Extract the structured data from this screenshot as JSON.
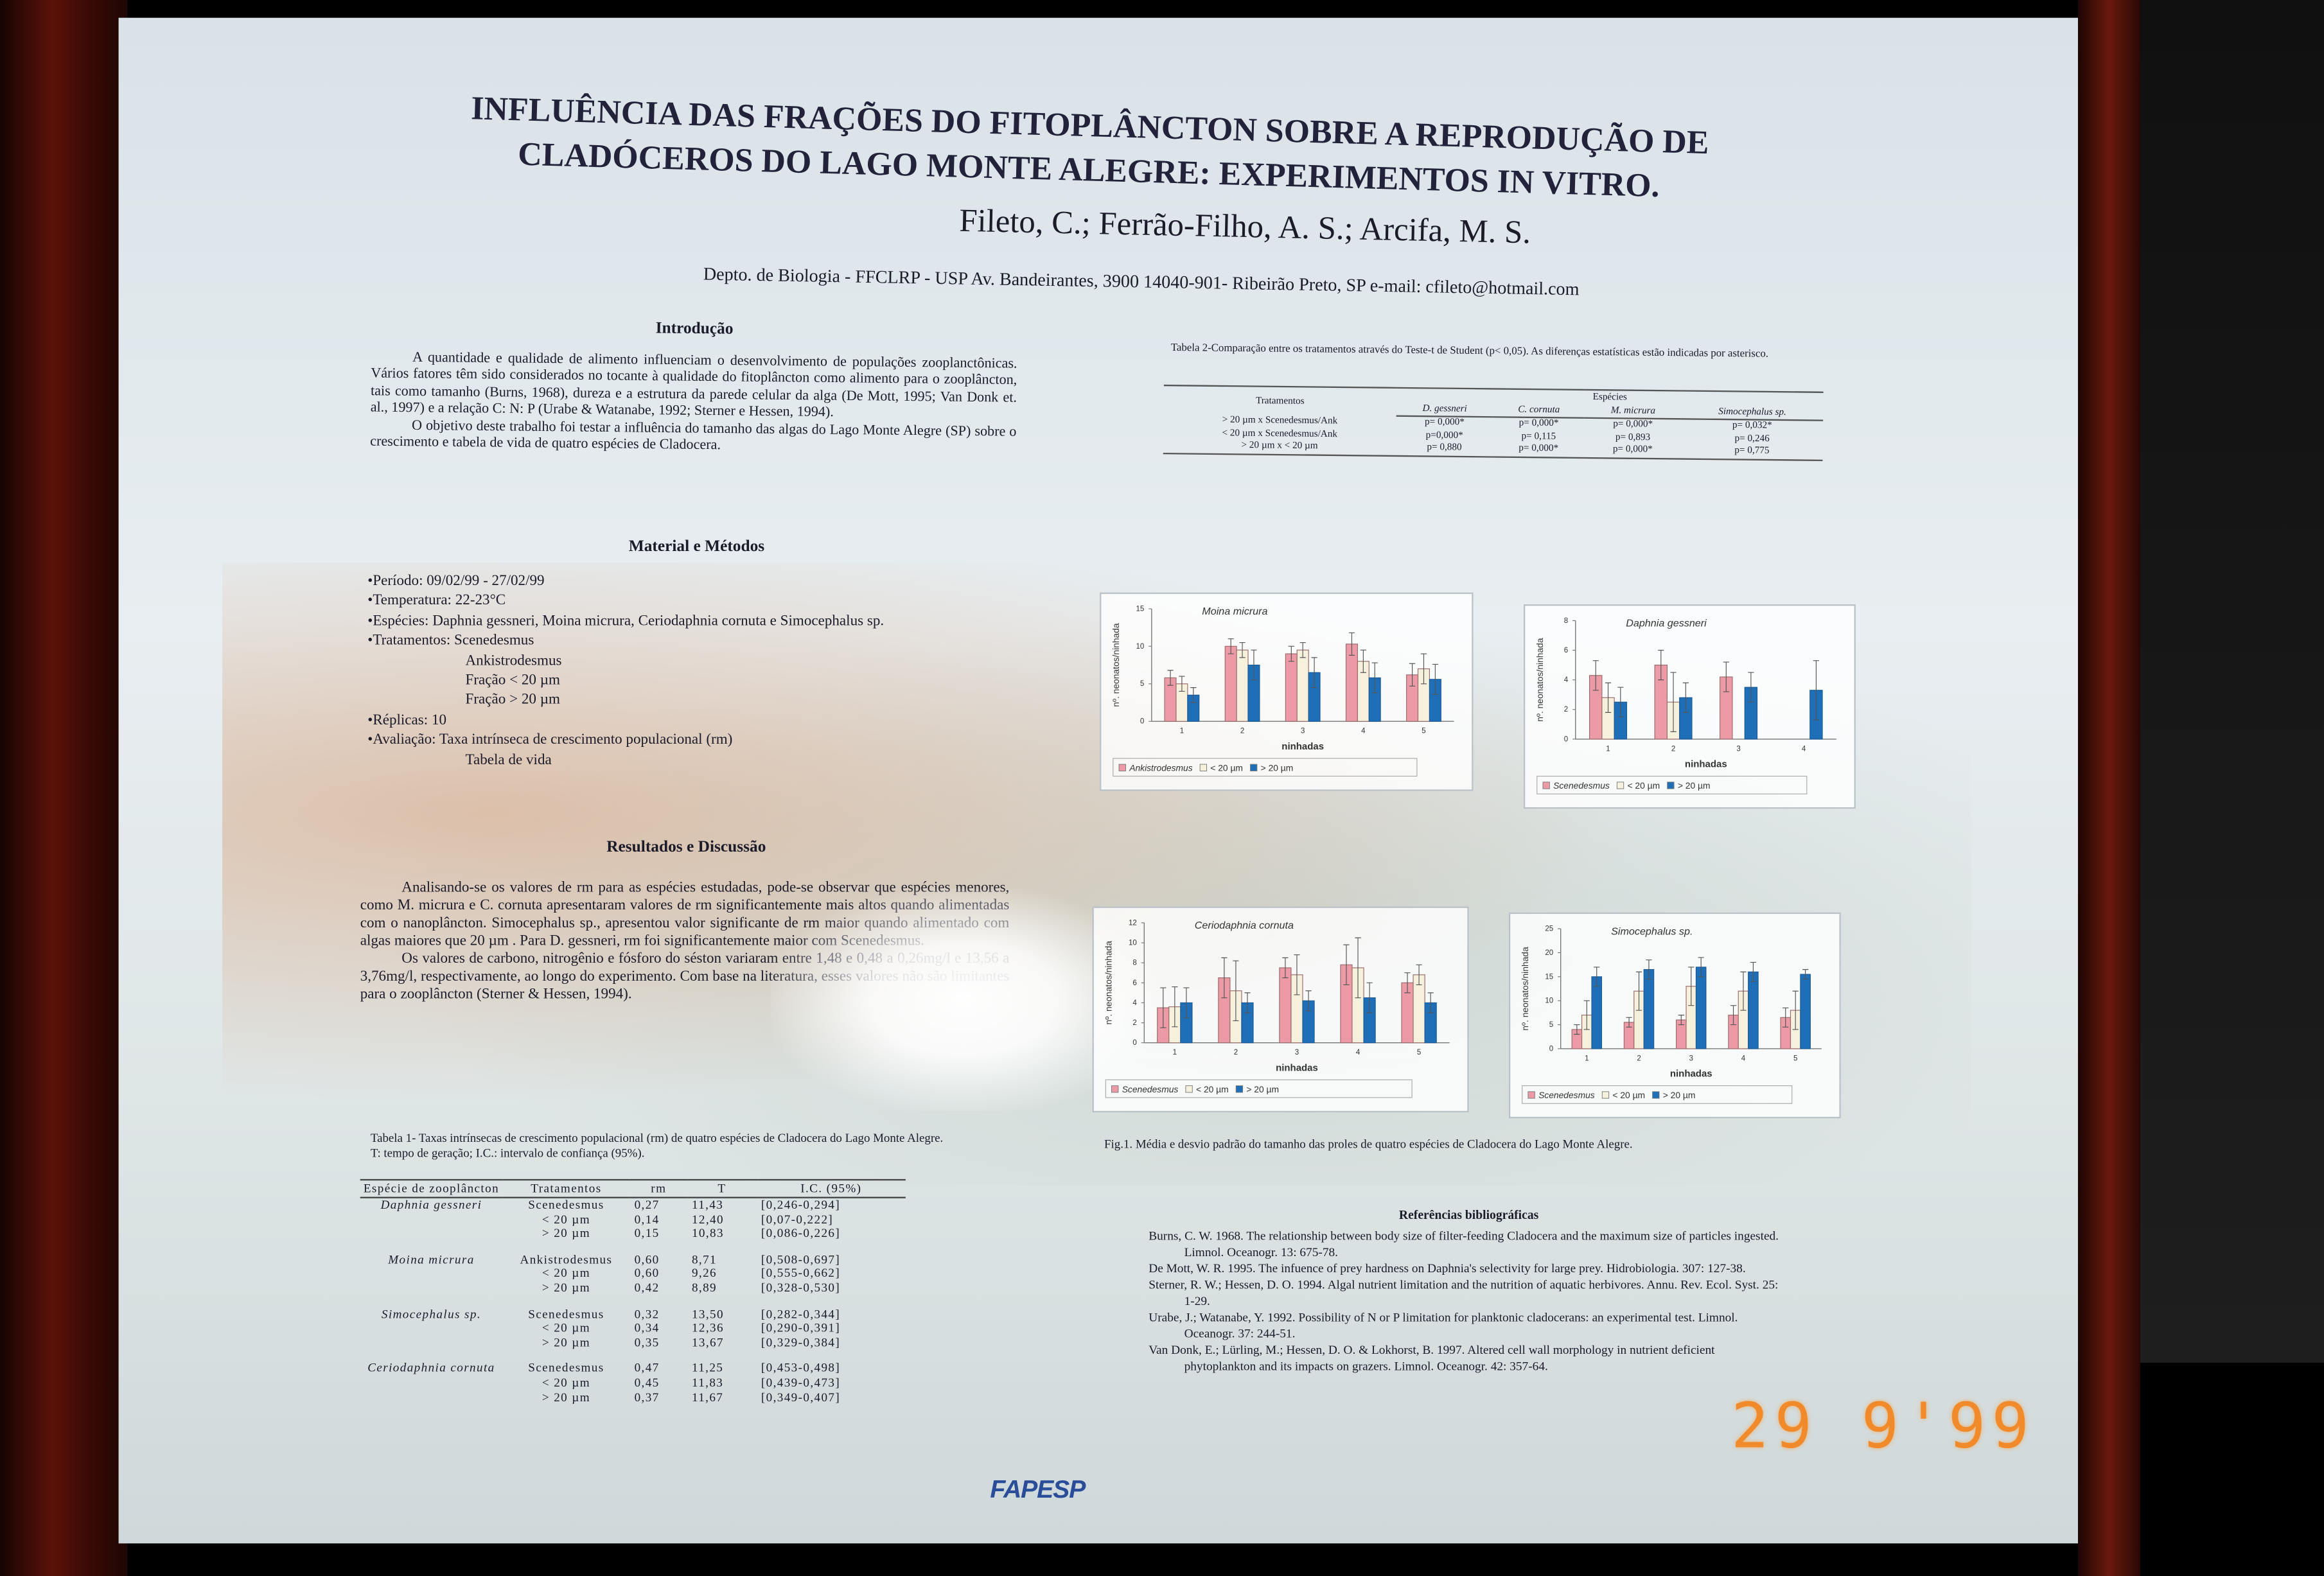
{
  "header": {
    "title": "INFLUÊNCIA DAS FRAÇÕES DO FITOPLÂNCTON SOBRE A REPRODUÇÃO DE CLADÓCEROS DO LAGO MONTE ALEGRE: EXPERIMENTOS IN VITRO.",
    "authors": "Fileto, C.; Ferrão-Filho, A. S.; Arcifa, M. S.",
    "affiliation": "Depto. de Biologia - FFCLRP - USP  Av. Bandeirantes, 3900  14040-901- Ribeirão Preto, SP e-mail: cfileto@hotmail.com"
  },
  "introduction": {
    "heading": "Introdução",
    "paragraphs": [
      "A quantidade e qualidade de alimento influenciam o desenvolvimento de populações zooplanctônicas. Vários fatores têm sido considerados no tocante à qualidade do fitoplâncton como alimento para o zooplâncton, tais como tamanho (Burns, 1968), dureza e a estrutura da parede celular da alga (De Mott, 1995; Van Donk et. al., 1997)  e a relação C: N: P (Urabe & Watanabe, 1992; Sterner e Hessen, 1994).",
      "O objetivo deste trabalho foi testar a influência do tamanho das algas do Lago Monte Alegre (SP) sobre o crescimento e tabela de vida de quatro espécies de Cladocera."
    ]
  },
  "methods": {
    "heading": "Material e Métodos",
    "items": [
      {
        "text": "•Período: 09/02/99 - 27/02/99"
      },
      {
        "text": "•Temperatura: 22-23°C"
      },
      {
        "text": "•Espécies: Daphnia gessneri, Moina micrura, Ceriodaphnia cornuta e  Simocephalus sp."
      },
      {
        "text": "•Tratamentos: Scenedesmus",
        "sub": [
          "Ankistrodesmus",
          "Fração < 20 µm",
          "Fração > 20 µm"
        ]
      },
      {
        "text": "•Réplicas: 10"
      },
      {
        "text": "•Avaliação: Taxa intrínseca de crescimento populacional (rm)",
        "sub": [
          "Tabela de vida"
        ]
      }
    ]
  },
  "results": {
    "heading": "Resultados e Discussão",
    "paragraphs": [
      "Analisando-se os valores de rm para as espécies estudadas, pode-se observar que espécies menores, como M. micrura e C. cornuta apresentaram valores de rm significantemente mais altos quando alimentadas com o nanoplâncton. Simocephalus sp., apresentou valor significante de rm maior quando alimentado com algas maiores que 20 µm . Para D. gessneri, rm  foi significantemente maior com Scenedesmus.",
      "Os valores de carbono, nitrogênio e fósforo do séston variaram entre 1,48 e 0,48 a 0,26mg/l e 13,56 a 3,76mg/l, respectivamente, ao longo do experimento. Com base na literatura, esses valores não são limitantes para o zooplâncton (Sterner & Hessen, 1994)."
    ]
  },
  "table1": {
    "caption": "Tabela 1- Taxas intrínsecas de crescimento populacional (rm) de quatro espécies de Cladocera do Lago Monte Alegre. T: tempo de geração; I.C.: intervalo de confiança (95%).",
    "columns": [
      "Espécie de zooplâncton",
      "Tratamentos",
      "rm",
      "T",
      "I.C. (95%)"
    ],
    "groups": [
      {
        "species": "Daphnia gessneri",
        "rows": [
          [
            "Scenedesmus",
            "0,27",
            "11,43",
            "[0,246-0,294]"
          ],
          [
            "< 20 µm",
            "0,14",
            "12,40",
            "[0,07-0,222]"
          ],
          [
            "> 20 µm",
            "0,15",
            "10,83",
            "[0,086-0,226]"
          ]
        ]
      },
      {
        "species": "Moina micrura",
        "rows": [
          [
            "Ankistrodesmus",
            "0,60",
            "8,71",
            "[0,508-0,697]"
          ],
          [
            "< 20 µm",
            "0,60",
            "9,26",
            "[0,555-0,662]"
          ],
          [
            "> 20 µm",
            "0,42",
            "8,89",
            "[0,328-0,530]"
          ]
        ]
      },
      {
        "species": "Simocephalus sp.",
        "rows": [
          [
            "Scenedesmus",
            "0,32",
            "13,50",
            "[0,282-0,344]"
          ],
          [
            "< 20 µm",
            "0,34",
            "12,36",
            "[0,290-0,391]"
          ],
          [
            "> 20 µm",
            "0,35",
            "13,67",
            "[0,329-0,384]"
          ]
        ]
      },
      {
        "species": "Ceriodaphnia cornuta",
        "rows": [
          [
            "Scenedesmus",
            "0,47",
            "11,25",
            "[0,453-0,498]"
          ],
          [
            "< 20 µm",
            "0,45",
            "11,83",
            "[0,439-0,473]"
          ],
          [
            "> 20 µm",
            "0,37",
            "11,67",
            "[0,349-0,407]"
          ]
        ]
      }
    ]
  },
  "table2": {
    "caption": "Tabela 2-Comparação entre os tratamentos através do Teste-t de Student (p< 0,05). As diferenças estatísticas estão indicadas por asterisco.",
    "treatments_header": "Tratamentos",
    "species_header": "Espécies",
    "species": [
      "D. gessneri",
      "C. cornuta",
      "M. micrura",
      "Simocephalus sp."
    ],
    "rows": [
      {
        "treatment": "> 20 µm x Scenedesmus/Ank",
        "p": [
          "p= 0,000*",
          "p= 0,000*",
          "p= 0,000*",
          "p= 0,032*"
        ]
      },
      {
        "treatment": "< 20 µm x Scenedesmus/Ank",
        "p": [
          "p=0,000*",
          "p= 0,115",
          "p= 0,893",
          "p= 0,246"
        ]
      },
      {
        "treatment": "> 20 µm x < 20 µm",
        "p": [
          "p= 0,880",
          "p= 0,000*",
          "p= 0,000*",
          "p= 0,775"
        ]
      }
    ]
  },
  "figures": [
    {
      "type": "bar",
      "title": "Moina micrura",
      "y_label": "nº. neonatos/ninhada",
      "x_label": "ninhadas",
      "categories": [
        "1",
        "2",
        "3",
        "4",
        "5"
      ],
      "ylim": [
        0,
        15
      ],
      "yticks": [
        0,
        5,
        10,
        15
      ],
      "series": [
        {
          "name": "Ankistrodesmus",
          "color": "#ec9aa6",
          "values": [
            5.8,
            10,
            9,
            10.3,
            6.2
          ],
          "errors": [
            1,
            1,
            1,
            1.5,
            1.5
          ]
        },
        {
          "name": "< 20 µm",
          "color": "#f6f1dc",
          "values": [
            5,
            9.5,
            9.5,
            8,
            7
          ],
          "errors": [
            1,
            1,
            1,
            1.5,
            2
          ]
        },
        {
          "name": "> 20 µm",
          "color": "#1f6fb8",
          "values": [
            3.5,
            7.5,
            6.5,
            5.8,
            5.6
          ],
          "errors": [
            1,
            2,
            2,
            2,
            2
          ]
        }
      ]
    },
    {
      "type": "bar",
      "title": "Daphnia gessneri",
      "y_label": "nº. neonatos/ninhada",
      "x_label": "ninhadas",
      "categories": [
        "1",
        "2",
        "3",
        "4"
      ],
      "ylim": [
        0,
        8
      ],
      "yticks": [
        0,
        2,
        4,
        6,
        8
      ],
      "series": [
        {
          "name": "Scenedesmus",
          "color": "#ec9aa6",
          "values": [
            4.3,
            5,
            4.2,
            null
          ],
          "errors": [
            1,
            1,
            1,
            null
          ]
        },
        {
          "name": "< 20 µm",
          "color": "#f6f1dc",
          "values": [
            2.8,
            2.5,
            null,
            null
          ],
          "errors": [
            1,
            2,
            null,
            null
          ]
        },
        {
          "name": "> 20 µm",
          "color": "#1f6fb8",
          "values": [
            2.5,
            2.8,
            3.5,
            3.3
          ],
          "errors": [
            1,
            1,
            1,
            2
          ]
        }
      ]
    },
    {
      "type": "bar",
      "title": "Ceriodaphnia cornuta",
      "y_label": "nº. neonatos/ninhada",
      "x_label": "ninhadas",
      "categories": [
        "1",
        "2",
        "3",
        "4",
        "5"
      ],
      "ylim": [
        0,
        12
      ],
      "yticks": [
        0,
        2,
        4,
        6,
        8,
        10,
        12
      ],
      "series": [
        {
          "name": "Scenedesmus",
          "color": "#ec9aa6",
          "values": [
            3.5,
            6.5,
            7.5,
            7.8,
            6
          ],
          "errors": [
            2,
            2,
            1,
            2,
            1
          ]
        },
        {
          "name": "< 20 µm",
          "color": "#f6f1dc",
          "values": [
            3.6,
            5.2,
            6.8,
            7.5,
            6.8
          ],
          "errors": [
            2,
            3,
            2,
            3,
            1
          ]
        },
        {
          "name": "> 20 µm",
          "color": "#1f6fb8",
          "values": [
            4,
            4,
            4.2,
            4.5,
            4
          ],
          "errors": [
            1.5,
            1,
            1,
            1.5,
            1
          ]
        }
      ]
    },
    {
      "type": "bar",
      "title": "Simocephalus sp.",
      "y_label": "nº. neonatos/ninhada",
      "x_label": "ninhadas",
      "categories": [
        "1",
        "2",
        "3",
        "4",
        "5"
      ],
      "ylim": [
        0,
        25
      ],
      "yticks": [
        0,
        5,
        10,
        15,
        20,
        25
      ],
      "series": [
        {
          "name": "Scenedesmus",
          "color": "#ec9aa6",
          "values": [
            4,
            5.5,
            6,
            7,
            6.5
          ],
          "errors": [
            1,
            1,
            1,
            2,
            2
          ]
        },
        {
          "name": "< 20 µm",
          "color": "#f6f1dc",
          "values": [
            7,
            12,
            13,
            12,
            8
          ],
          "errors": [
            3,
            4,
            4,
            4,
            4
          ]
        },
        {
          "name": "> 20 µm",
          "color": "#1f6fb8",
          "values": [
            15,
            16.5,
            17,
            16,
            15.5
          ],
          "errors": [
            2,
            2,
            2,
            2,
            1
          ]
        }
      ]
    }
  ],
  "figure_caption": "Fig.1.  Média e desvio padrão  do tamanho das proles de quatro espécies de Cladocera do Lago Monte Alegre.",
  "references": {
    "heading": "Referências bibliográficas",
    "items": [
      "Burns, C. W. 1968. The relationship between body size of filter-feeding Cladocera and the maximum size of particles ingested. Limnol. Oceanogr. 13: 675-78.",
      "De Mott, W. R. 1995. The infuence of prey hardness on Daphnia's selectivity for large prey. Hidrobiologia. 307: 127-38.",
      "Sterner, R. W.; Hessen, D. O. 1994. Algal nutrient limitation and the nutrition of aquatic herbivores. Annu. Rev. Ecol. Syst. 25: 1-29.",
      "Urabe, J.; Watanabe, Y. 1992. Possibility of N or P limitation for planktonic cladocerans: an experimental test. Limnol. Oceanogr. 37: 244-51.",
      "Van Donk, E.; Lürling, M.; Hessen, D. O. & Lokhorst, B. 1997. Altered cell wall morphology in nutrient deficient phytoplankton and its impacts on grazers. Limnol. Oceanogr. 42: 357-64."
    ]
  },
  "logo": "FAPESP",
  "date_stamp": "29 9'99"
}
